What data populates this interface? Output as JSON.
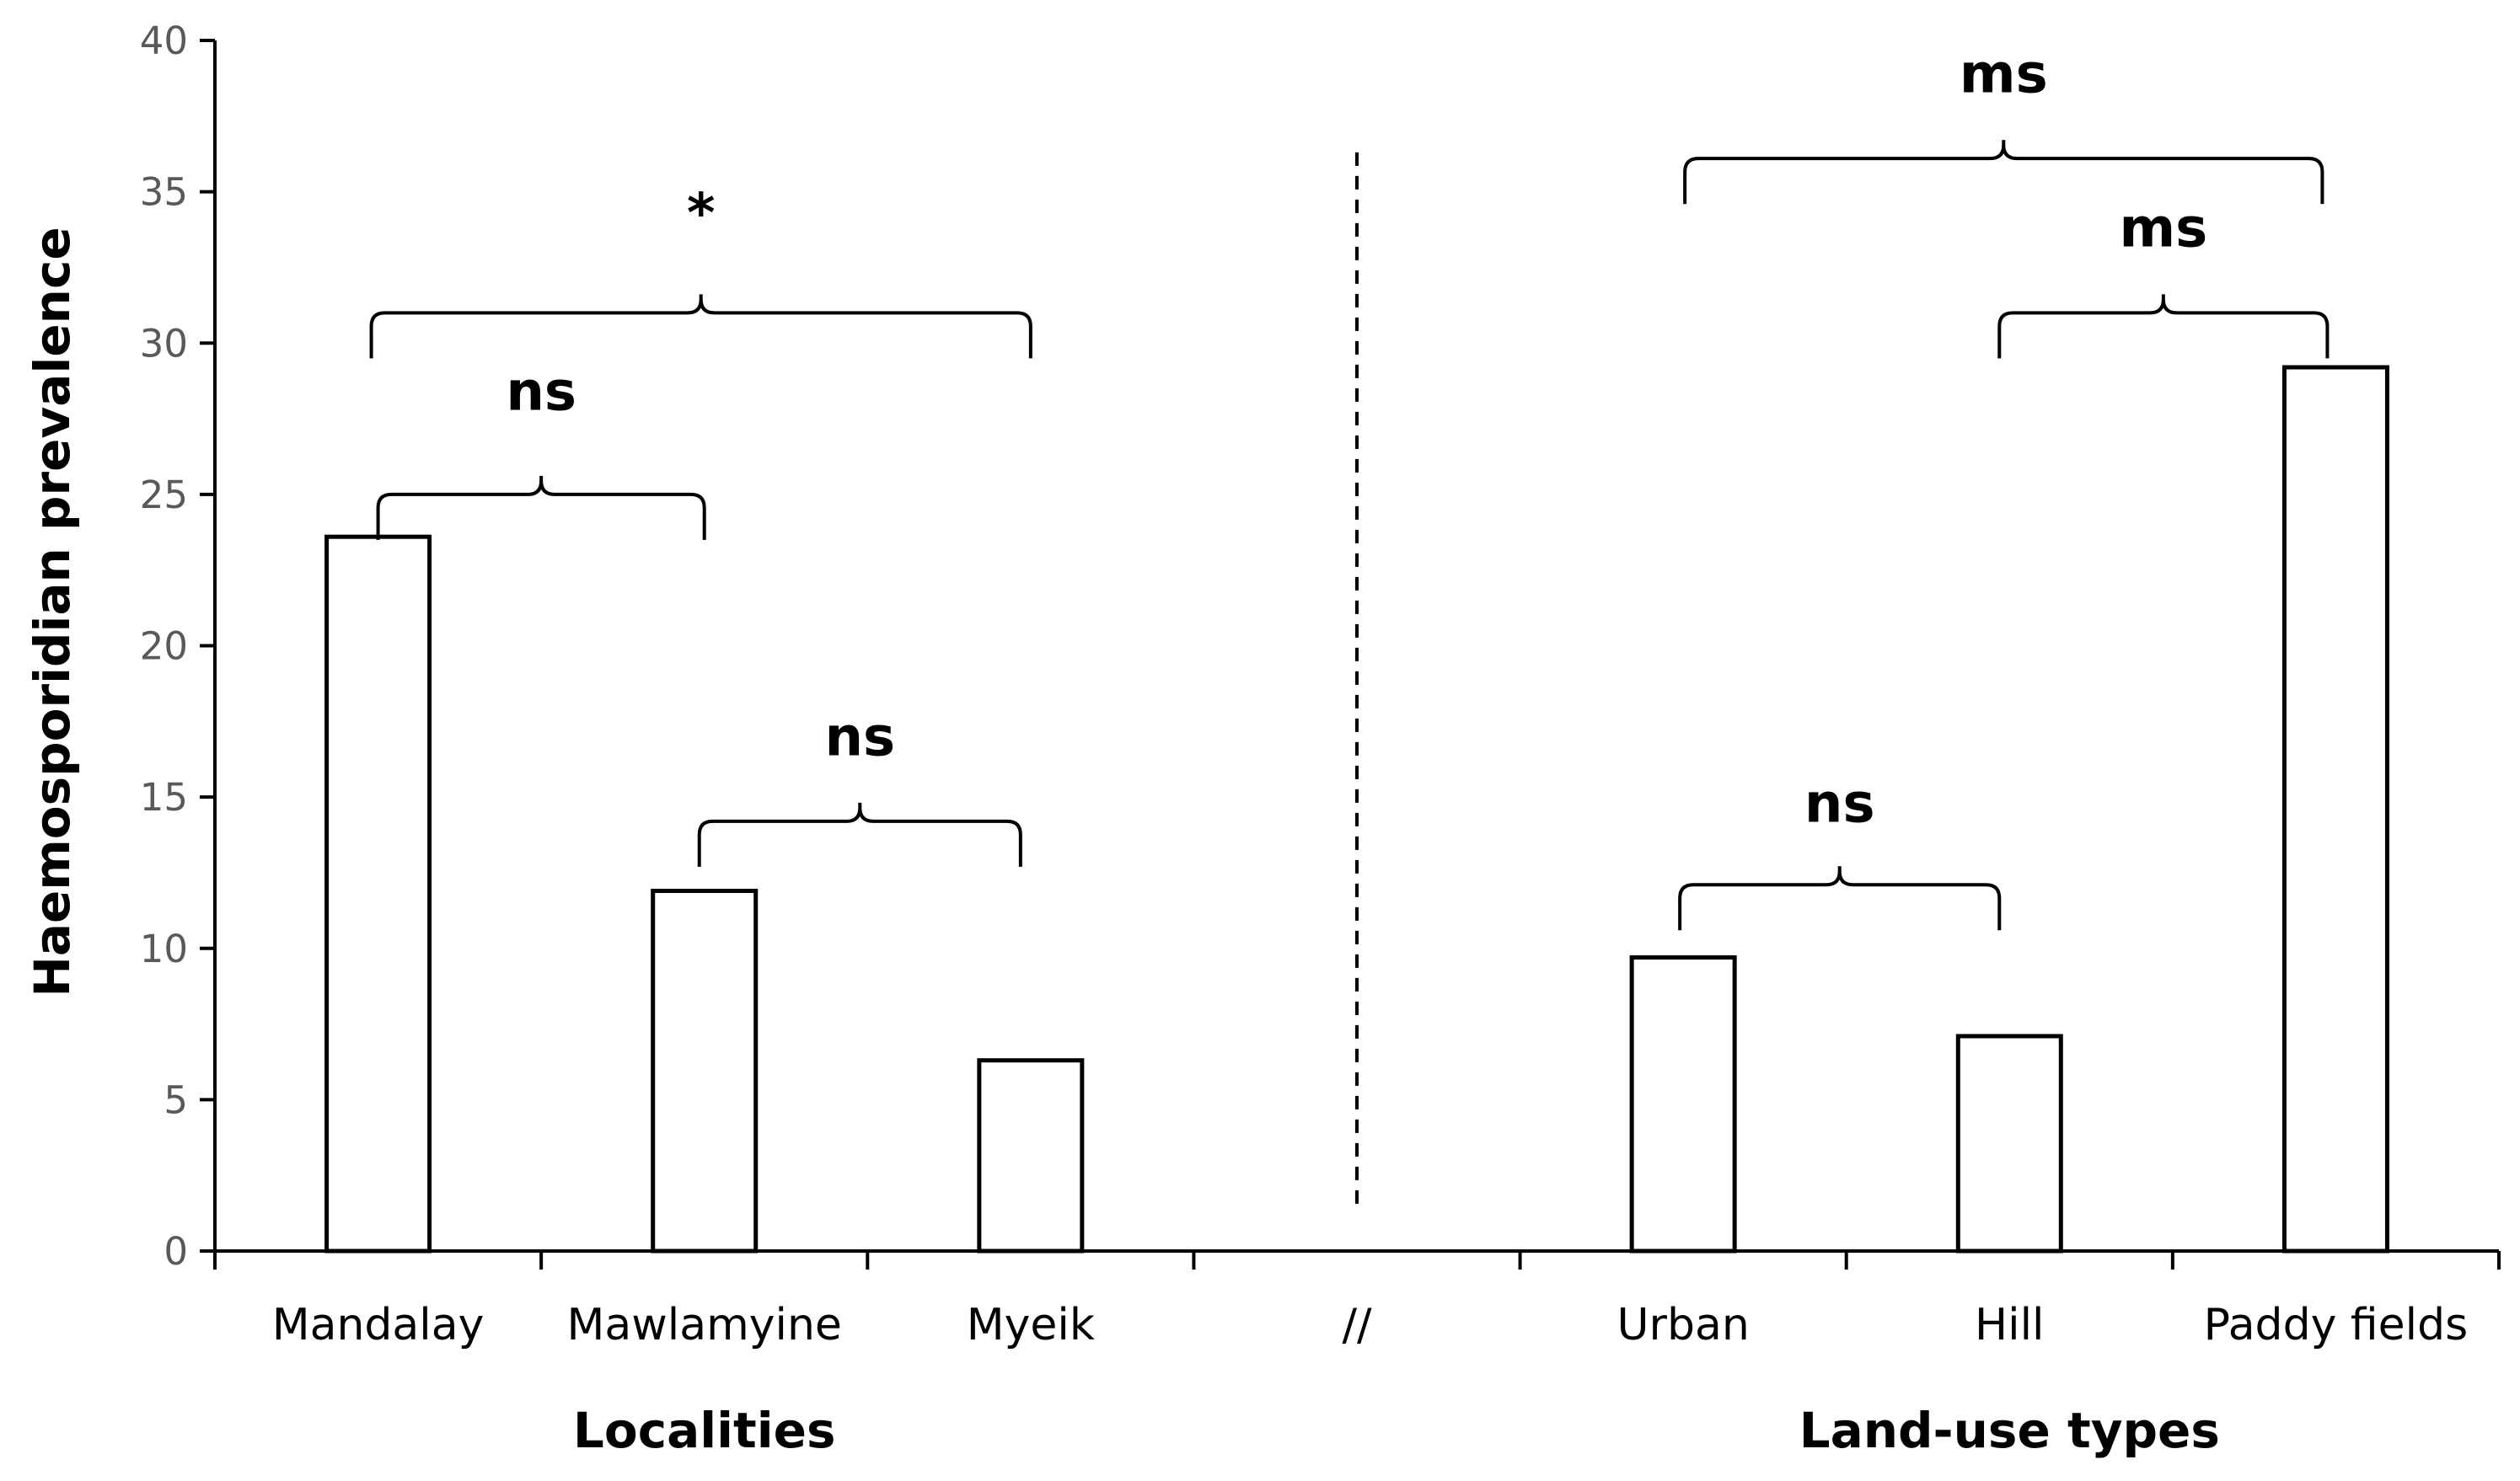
{
  "chart_data": {
    "type": "bar",
    "ylabel": "Haemosporidian prevalence",
    "ylim": [
      0,
      40
    ],
    "yticks": [
      0,
      5,
      10,
      15,
      20,
      25,
      30,
      35,
      40
    ],
    "grid": false,
    "categories": [
      "Mandalay",
      "Mawlamyine",
      "Myeik",
      "//",
      "Urban",
      "Hill",
      "Paddy fields"
    ],
    "values": [
      23.6,
      11.9,
      6.3,
      null,
      9.7,
      7.1,
      29.2
    ],
    "groups": [
      {
        "label": "Localities",
        "categories": [
          "Mandalay",
          "Mawlamyine",
          "Myeik"
        ]
      },
      {
        "label": "Land-use types",
        "categories": [
          "Urban",
          "Hill",
          "Paddy fields"
        ]
      }
    ],
    "separator": "//",
    "significance": [
      {
        "from": "Mandalay",
        "to": "Mawlamyine",
        "label": "ns"
      },
      {
        "from": "Mandalay",
        "to": "Myeik",
        "label": "*"
      },
      {
        "from": "Mawlamyine",
        "to": "Myeik",
        "label": "ns"
      },
      {
        "from": "Urban",
        "to": "Hill",
        "label": "ns"
      },
      {
        "from": "Hill",
        "to": "Paddy fields",
        "label": "ms"
      },
      {
        "from": "Urban",
        "to": "Paddy fields",
        "label": "ms"
      }
    ]
  }
}
